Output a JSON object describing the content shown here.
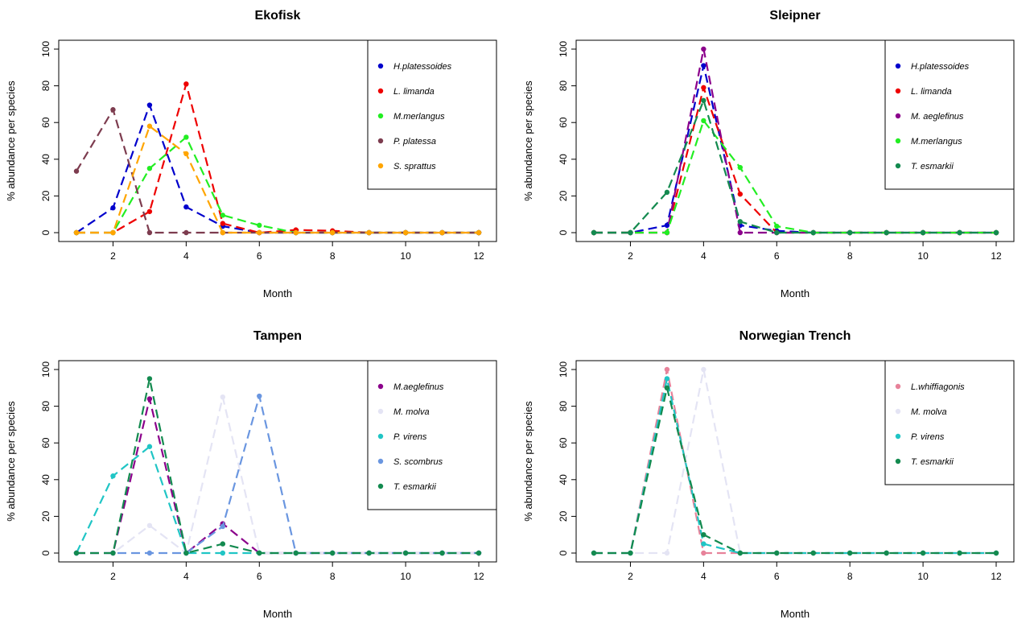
{
  "chart_data": [
    {
      "type": "line",
      "title": "Ekofisk",
      "xlabel": "Month",
      "ylabel": "% abundance per species",
      "xlim": [
        1,
        12
      ],
      "ylim": [
        0,
        100
      ],
      "xticks": [
        2,
        4,
        6,
        8,
        10,
        12
      ],
      "yticks": [
        0,
        20,
        40,
        60,
        80,
        100
      ],
      "x": [
        1,
        2,
        3,
        4,
        5,
        6,
        7,
        8,
        9,
        10,
        11,
        12
      ],
      "legend_position": "top-right",
      "series": [
        {
          "name": "H.platessoides",
          "color": "#0000cc",
          "values": [
            0,
            13.5,
            69.5,
            14,
            3.5,
            0,
            0,
            0,
            0,
            0,
            0,
            0
          ]
        },
        {
          "name": "L. limanda",
          "color": "#ee0000",
          "values": [
            0,
            0,
            11.5,
            81,
            5,
            0,
            1.5,
            1,
            0,
            0,
            0,
            0
          ]
        },
        {
          "name": "M.merlangus",
          "color": "#22ee22",
          "values": [
            0,
            0,
            35,
            52,
            9.5,
            4,
            0,
            0,
            0,
            0,
            0,
            0
          ]
        },
        {
          "name": "P. platessa",
          "color": "#7d3c4f",
          "values": [
            33.5,
            67,
            0,
            0,
            0,
            0,
            0,
            0,
            0,
            0,
            0,
            0
          ]
        },
        {
          "name": "S. sprattus",
          "color": "#ffa500",
          "values": [
            0,
            0,
            58,
            43,
            0,
            0,
            0,
            0,
            0,
            0,
            0,
            0
          ]
        }
      ]
    },
    {
      "type": "line",
      "title": "Sleipner",
      "xlabel": "Month",
      "ylabel": "% abundance per species",
      "xlim": [
        1,
        12
      ],
      "ylim": [
        0,
        100
      ],
      "xticks": [
        2,
        4,
        6,
        8,
        10,
        12
      ],
      "yticks": [
        0,
        20,
        40,
        60,
        80,
        100
      ],
      "x": [
        1,
        2,
        3,
        4,
        5,
        6,
        7,
        8,
        9,
        10,
        11,
        12
      ],
      "legend_position": "top-right",
      "series": [
        {
          "name": "H.platessoides",
          "color": "#0000cc",
          "values": [
            0,
            0,
            4,
            91,
            4,
            1,
            0,
            0,
            0,
            0,
            0,
            0
          ]
        },
        {
          "name": "L. limanda",
          "color": "#ee0000",
          "values": [
            0,
            0,
            0,
            79,
            21,
            0,
            0,
            0,
            0,
            0,
            0,
            0
          ]
        },
        {
          "name": "M. aeglefinus",
          "color": "#8b008b",
          "values": [
            0,
            0,
            0,
            100,
            0,
            0,
            0,
            0,
            0,
            0,
            0,
            0
          ]
        },
        {
          "name": "M.merlangus",
          "color": "#22ee22",
          "values": [
            0,
            0,
            0,
            61,
            35.5,
            3.5,
            0,
            0,
            0,
            0,
            0,
            0
          ]
        },
        {
          "name": "T. esmarkii",
          "color": "#138a4f",
          "values": [
            0,
            0,
            22,
            72,
            6,
            0,
            0,
            0,
            0,
            0,
            0,
            0
          ]
        }
      ]
    },
    {
      "type": "line",
      "title": "Tampen",
      "xlabel": "Month",
      "ylabel": "% abundance per species",
      "xlim": [
        1,
        12
      ],
      "ylim": [
        0,
        100
      ],
      "xticks": [
        2,
        4,
        6,
        8,
        10,
        12
      ],
      "yticks": [
        0,
        20,
        40,
        60,
        80,
        100
      ],
      "x": [
        1,
        2,
        3,
        4,
        5,
        6,
        7,
        8,
        9,
        10,
        11,
        12
      ],
      "legend_position": "top-right",
      "series": [
        {
          "name": "M.aeglefinus",
          "color": "#8b008b",
          "values": [
            0,
            0,
            84,
            0,
            16,
            0,
            0,
            0,
            0,
            0,
            0,
            0
          ]
        },
        {
          "name": "M. molva",
          "color": "#e4e4f4",
          "values": [
            0,
            0,
            15,
            0,
            85,
            0,
            0,
            0,
            0,
            0,
            0,
            0
          ]
        },
        {
          "name": "P. virens",
          "color": "#20c5c5",
          "values": [
            0,
            42,
            58,
            0,
            0,
            0,
            0,
            0,
            0,
            0,
            0,
            0
          ]
        },
        {
          "name": "S. scombrus",
          "color": "#6a96e0",
          "values": [
            0,
            0,
            0,
            0,
            14.5,
            85.5,
            0,
            0,
            0,
            0,
            0,
            0
          ]
        },
        {
          "name": "T. esmarkii",
          "color": "#138a4f",
          "values": [
            0,
            0,
            95,
            0,
            5,
            0,
            0,
            0,
            0,
            0,
            0,
            0
          ]
        }
      ]
    },
    {
      "type": "line",
      "title": "Norwegian Trench",
      "xlabel": "Month",
      "ylabel": "% abundance per species",
      "xlim": [
        1,
        12
      ],
      "ylim": [
        0,
        100
      ],
      "xticks": [
        2,
        4,
        6,
        8,
        10,
        12
      ],
      "yticks": [
        0,
        20,
        40,
        60,
        80,
        100
      ],
      "x": [
        1,
        2,
        3,
        4,
        5,
        6,
        7,
        8,
        9,
        10,
        11,
        12
      ],
      "legend_position": "top-right",
      "series": [
        {
          "name": "L.whiffiagonis",
          "color": "#e7829a",
          "values": [
            0,
            0,
            100,
            0,
            0,
            0,
            0,
            0,
            0,
            0,
            0,
            0
          ]
        },
        {
          "name": "M. molva",
          "color": "#e4e4f4",
          "values": [
            0,
            0,
            0,
            100,
            0,
            0,
            0,
            0,
            0,
            0,
            0,
            0
          ]
        },
        {
          "name": "P. virens",
          "color": "#20c5c5",
          "values": [
            0,
            0,
            95,
            5,
            0,
            0,
            0,
            0,
            0,
            0,
            0,
            0
          ]
        },
        {
          "name": "T. esmarkii",
          "color": "#138a4f",
          "values": [
            0,
            0,
            90,
            10,
            0,
            0,
            0,
            0,
            0,
            0,
            0,
            0
          ]
        }
      ]
    }
  ]
}
